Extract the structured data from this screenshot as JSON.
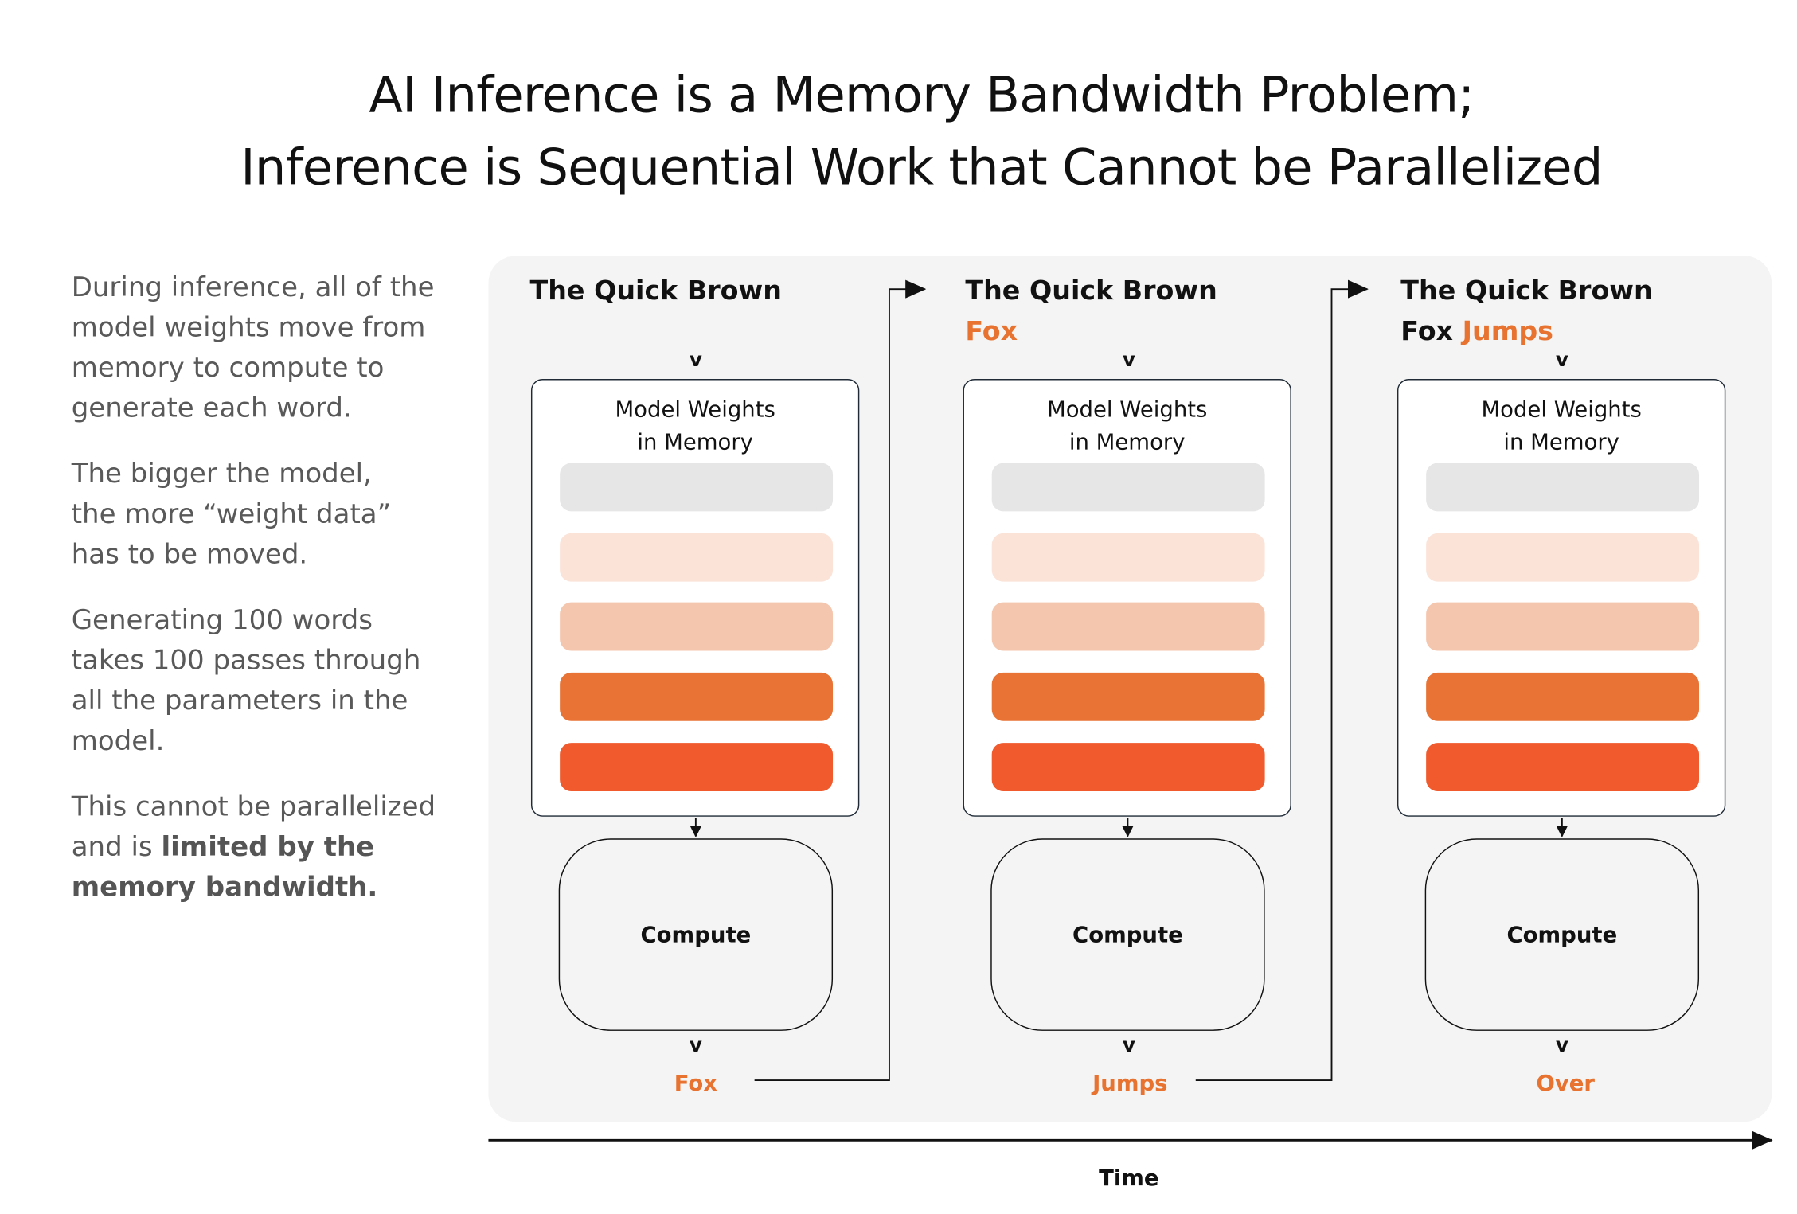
{
  "title": {
    "line1": "AI Inference is a Memory Bandwidth Problem;",
    "line2": "Inference is Sequential Work that Cannot be Parallelized"
  },
  "sidebar": {
    "p1": "During inference, all of the model weights move from memory to compute to generate each word.",
    "p2": "The bigger the model, the more “weight data” has to be moved.",
    "p3": "Generating 100 words takes 100 passes through all the parameters in the model.",
    "p4_plain": "This cannot be parallelized and is",
    "p4_bold": "limited by the memory bandwidth."
  },
  "colors": {
    "accent": "#e8722f",
    "panel": "#f4f4f4",
    "bars": [
      "#e6e6e6",
      "#fbe3d8",
      "#f5c6ae",
      "#e87335",
      "#f05a2d"
    ]
  },
  "steps": [
    {
      "prompt": "The Quick Brown",
      "prompt_line2_plain": "",
      "new_word": "",
      "memory_label_1": "Model Weights",
      "memory_label_2": "in Memory",
      "compute_label": "Compute",
      "output": "Fox"
    },
    {
      "prompt": "The Quick Brown",
      "prompt_line2_plain": "",
      "new_word": "Fox",
      "memory_label_1": "Model Weights",
      "memory_label_2": "in Memory",
      "compute_label": "Compute",
      "output": "Jumps"
    },
    {
      "prompt": "The Quick Brown",
      "prompt_line2_plain": "Fox ",
      "new_word": "Jumps",
      "memory_label_1": "Model Weights",
      "memory_label_2": "in Memory",
      "compute_label": "Compute",
      "output": "Over"
    }
  ],
  "chevron": "v",
  "axis": {
    "label": "Time"
  }
}
